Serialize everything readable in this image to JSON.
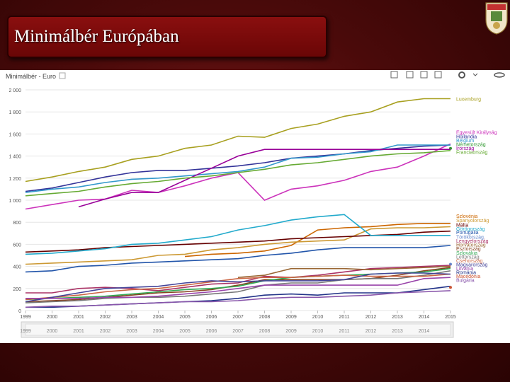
{
  "slide": {
    "title": "Minimálbér Európában",
    "accent": "#7a0a0a"
  },
  "toolbar": {
    "chart_icons": [
      "line-chart-icon",
      "bar-chart-icon",
      "map-icon",
      "scatter-icon"
    ],
    "settings_icon": "gear-icon",
    "share_icon": "link-icon"
  },
  "chart_data": {
    "type": "line",
    "title": "Minimálbér - Euro",
    "xlabel": "",
    "ylabel": "",
    "xlim": [
      1999,
      2015
    ],
    "ylim": [
      0,
      2000
    ],
    "yticks": [
      "2 000",
      "1 800",
      "1 600",
      "1 400",
      "1 200",
      "1 000",
      "800",
      "600",
      "400",
      "200",
      "0"
    ],
    "xticks": [
      "1999",
      "2000",
      "2001",
      "2002",
      "2003",
      "2004",
      "2005",
      "2006",
      "2007",
      "2008",
      "2009",
      "2010",
      "2011",
      "2012",
      "2013",
      "2014",
      "2015"
    ],
    "grid": true,
    "legend": "right",
    "series": [
      {
        "name": "Luxemburg",
        "color": "#a8a020",
        "label_y": 1920,
        "values": [
          1170,
          1210,
          1260,
          1300,
          1370,
          1400,
          1470,
          1500,
          1580,
          1570,
          1650,
          1690,
          1760,
          1800,
          1890,
          1920,
          1920
        ]
      },
      {
        "name": "Egyesült Királyság",
        "color": "#cc33bb",
        "label_y": 1620,
        "values": [
          920,
          960,
          1000,
          1010,
          1090,
          1070,
          1130,
          1200,
          1250,
          1000,
          1100,
          1130,
          1180,
          1260,
          1300,
          1400,
          1510
        ]
      },
      {
        "name": "Hollandia",
        "color": "#333399",
        "label_y": 1580,
        "values": [
          1080,
          1110,
          1160,
          1210,
          1250,
          1270,
          1270,
          1290,
          1310,
          1340,
          1380,
          1400,
          1420,
          1450,
          1470,
          1490,
          1500
        ]
      },
      {
        "name": "Belgium",
        "color": "#3399cc",
        "label_y": 1545,
        "values": [
          1070,
          1100,
          1120,
          1160,
          1190,
          1200,
          1220,
          1240,
          1260,
          1300,
          1380,
          1390,
          1420,
          1440,
          1500,
          1500,
          1500
        ]
      },
      {
        "name": "Németország",
        "color": "#339933",
        "label_y": 1510,
        "values": [
          0,
          0,
          0,
          0,
          0,
          0,
          0,
          0,
          0,
          0,
          0,
          0,
          0,
          0,
          0,
          0,
          1470
        ]
      },
      {
        "name": "Írország",
        "color": "#990099",
        "label_y": 1475,
        "values": [
          0,
          0,
          940,
          1010,
          1070,
          1070,
          1180,
          1290,
          1400,
          1460,
          1460,
          1460,
          1460,
          1460,
          1460,
          1460,
          1460
        ]
      },
      {
        "name": "Franciaország",
        "color": "#66aa33",
        "label_y": 1440,
        "values": [
          1040,
          1060,
          1080,
          1120,
          1150,
          1170,
          1200,
          1220,
          1250,
          1280,
          1320,
          1340,
          1370,
          1400,
          1420,
          1430,
          1450
        ]
      },
      {
        "name": "Szlovénia",
        "color": "#cc6600",
        "label_y": 860,
        "values": [
          0,
          0,
          0,
          0,
          0,
          0,
          490,
          510,
          520,
          540,
          590,
          730,
          750,
          760,
          780,
          790,
          790
        ]
      },
      {
        "name": "Spanyolország",
        "color": "#cc9933",
        "label_y": 820,
        "values": [
          420,
          430,
          440,
          450,
          460,
          500,
          510,
          550,
          570,
          600,
          620,
          630,
          640,
          740,
          750,
          750,
          760
        ]
      },
      {
        "name": "Málta",
        "color": "#660000",
        "label_y": 780,
        "values": [
          530,
          540,
          550,
          570,
          580,
          590,
          600,
          610,
          620,
          630,
          650,
          660,
          670,
          680,
          690,
          710,
          720
        ]
      },
      {
        "name": "Görögország",
        "color": "#22aacc",
        "label_y": 745,
        "values": [
          510,
          520,
          540,
          560,
          600,
          610,
          640,
          670,
          730,
          770,
          820,
          850,
          870,
          680,
          680,
          680,
          680
        ]
      },
      {
        "name": "Portugália",
        "color": "#2255aa",
        "label_y": 710,
        "values": [
          350,
          360,
          400,
          410,
          430,
          440,
          450,
          460,
          470,
          500,
          520,
          550,
          570,
          570,
          570,
          570,
          590
        ]
      },
      {
        "name": "Törökország",
        "color": "#6688cc",
        "label_y": 670,
        "values": [
          0,
          0,
          0,
          0,
          0,
          0,
          0,
          0,
          0,
          0,
          0,
          0,
          0,
          0,
          0,
          0,
          420
        ]
      },
      {
        "name": "Lengyelország",
        "color": "#aa3366",
        "label_y": 635,
        "values": [
          160,
          160,
          200,
          210,
          200,
          180,
          210,
          240,
          250,
          310,
          300,
          320,
          350,
          380,
          390,
          400,
          410
        ]
      },
      {
        "name": "Horvátország",
        "color": "#996633",
        "label_y": 600,
        "values": [
          0,
          0,
          0,
          0,
          0,
          0,
          0,
          0,
          300,
          320,
          380,
          380,
          380,
          370,
          380,
          390,
          400
        ]
      },
      {
        "name": "Észtország",
        "color": "#884422",
        "label_y": 565,
        "values": [
          80,
          90,
          100,
          120,
          140,
          160,
          170,
          190,
          230,
          280,
          280,
          280,
          280,
          290,
          320,
          360,
          390
        ]
      },
      {
        "name": "Szlovákia",
        "color": "#33aa55",
        "label_y": 525,
        "values": [
          100,
          110,
          120,
          130,
          150,
          170,
          190,
          200,
          220,
          270,
          300,
          310,
          320,
          330,
          340,
          350,
          380
        ]
      },
      {
        "name": "Lettország",
        "color": "#777777",
        "label_y": 490,
        "values": [
          70,
          80,
          90,
          110,
          120,
          120,
          130,
          150,
          170,
          230,
          250,
          250,
          280,
          290,
          290,
          320,
          360
        ]
      },
      {
        "name": "Csehország",
        "color": "#cc6644",
        "label_y": 455,
        "values": [
          100,
          120,
          140,
          170,
          190,
          200,
          230,
          260,
          290,
          300,
          300,
          310,
          320,
          310,
          310,
          310,
          330
        ]
      },
      {
        "name": "Magyarország",
        "color": "#444499",
        "label_y": 420,
        "values": [
          80,
          120,
          160,
          200,
          210,
          220,
          250,
          270,
          260,
          270,
          270,
          270,
          280,
          330,
          340,
          340,
          330
        ]
      },
      {
        "name": "Litvánia",
        "color": "#9944aa",
        "label_y": 385,
        "values": [
          110,
          110,
          110,
          120,
          120,
          130,
          150,
          170,
          200,
          230,
          230,
          230,
          230,
          230,
          230,
          290,
          300
        ]
      },
      {
        "name": "Románia",
        "color": "#223388",
        "label_y": 350,
        "values": [
          30,
          30,
          40,
          50,
          60,
          70,
          80,
          90,
          110,
          140,
          150,
          140,
          160,
          160,
          160,
          190,
          220
        ]
      },
      {
        "name": "Macedónia",
        "color": "#cc5533",
        "label_y": 315,
        "values": [
          0,
          0,
          0,
          0,
          0,
          0,
          0,
          0,
          0,
          0,
          0,
          0,
          0,
          0,
          0,
          0,
          210
        ]
      },
      {
        "name": "Bulgária",
        "color": "#8855aa",
        "label_y": 280,
        "values": [
          30,
          40,
          40,
          50,
          60,
          70,
          80,
          80,
          90,
          110,
          120,
          120,
          130,
          140,
          160,
          170,
          180
        ]
      }
    ]
  }
}
